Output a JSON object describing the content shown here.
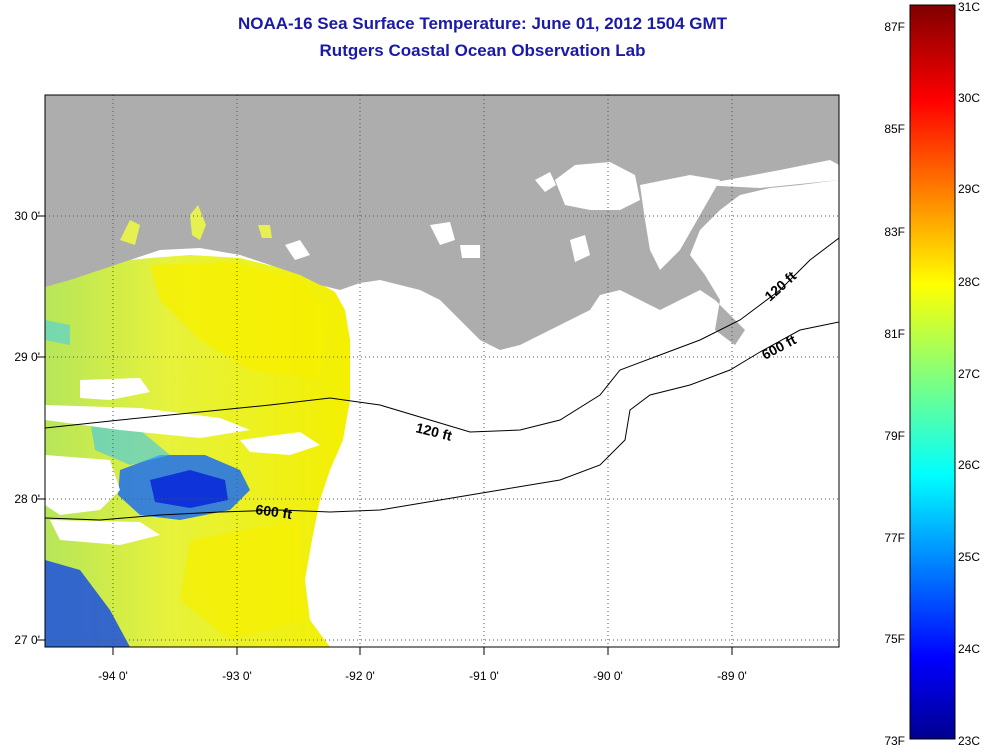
{
  "title_line1": "NOAA-16 Sea Surface Temperature:  June 01, 2012 1504 GMT",
  "title_line2": "Rutgers Coastal Ocean Observation Lab",
  "map": {
    "lon_ticks": [
      "-94 0'",
      "-93 0'",
      "-92 0'",
      "-91 0'",
      "-90 0'",
      "-89 0'"
    ],
    "lat_ticks": [
      "30 0'",
      "29 0'",
      "28 0'",
      "27 0'"
    ],
    "contours": [
      {
        "label": "120 ft",
        "depth": "120 ft"
      },
      {
        "label": "600 ft",
        "depth": "600 ft"
      },
      {
        "label": "120 ft",
        "depth": "120 ft"
      },
      {
        "label": "600 ft",
        "depth": "600 ft"
      }
    ],
    "colors": {
      "land": "#adadad",
      "grid": "#444444",
      "background": "#ffffff"
    }
  },
  "colorbar": {
    "fahrenheit": [
      "87F",
      "85F",
      "83F",
      "81F",
      "79F",
      "77F",
      "75F",
      "73F"
    ],
    "celsius": [
      "31C",
      "30C",
      "29C",
      "28C",
      "27C",
      "26C",
      "25C",
      "24C",
      "23C"
    ],
    "range_c": [
      23,
      31
    ],
    "colormap": "jet"
  }
}
